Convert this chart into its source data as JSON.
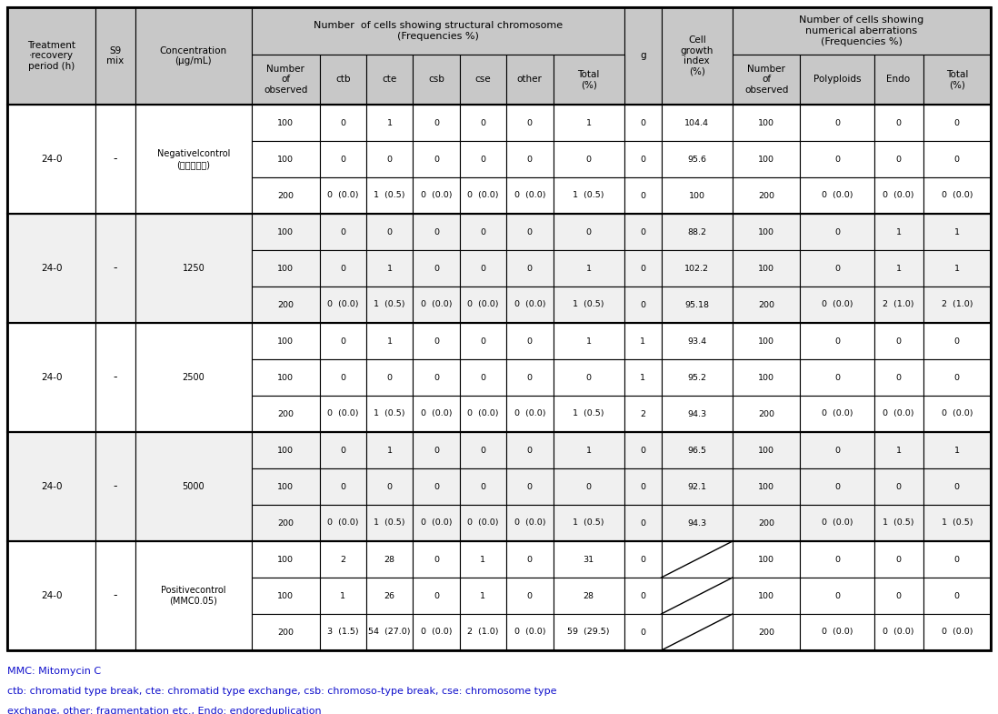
{
  "header_bg": "#c8c8c8",
  "white": "#ffffff",
  "light_gray": "#f0f0f0",
  "col_widths_rel": [
    7.2,
    3.2,
    9.5,
    5.5,
    3.8,
    3.8,
    3.8,
    3.8,
    3.8,
    5.8,
    3.0,
    5.8,
    5.5,
    6.0,
    4.0,
    5.5
  ],
  "groups": [
    {
      "treatment": "24-0",
      "s9": "-",
      "concentration": "Negativelcontrol\n(말균증류수)",
      "rows": [
        [
          "100",
          "0",
          "1",
          "0",
          "0",
          "0",
          "1",
          "0",
          "104.4",
          "100",
          "0",
          "0",
          "0"
        ],
        [
          "100",
          "0",
          "0",
          "0",
          "0",
          "0",
          "0",
          "0",
          "95.6",
          "100",
          "0",
          "0",
          "0"
        ],
        [
          "200",
          "0  (0.0)",
          "1  (0.5)",
          "0  (0.0)",
          "0  (0.0)",
          "0  (0.0)",
          "1  (0.5)",
          "0",
          "100",
          "200",
          "0  (0.0)",
          "0  (0.0)",
          "0  (0.0)"
        ]
      ]
    },
    {
      "treatment": "24-0",
      "s9": "-",
      "concentration": "1250",
      "rows": [
        [
          "100",
          "0",
          "0",
          "0",
          "0",
          "0",
          "0",
          "0",
          "88.2",
          "100",
          "0",
          "1",
          "1"
        ],
        [
          "100",
          "0",
          "1",
          "0",
          "0",
          "0",
          "1",
          "0",
          "102.2",
          "100",
          "0",
          "1",
          "1"
        ],
        [
          "200",
          "0  (0.0)",
          "1  (0.5)",
          "0  (0.0)",
          "0  (0.0)",
          "0  (0.0)",
          "1  (0.5)",
          "0",
          "95.18",
          "200",
          "0  (0.0)",
          "2  (1.0)",
          "2  (1.0)"
        ]
      ]
    },
    {
      "treatment": "24-0",
      "s9": "-",
      "concentration": "2500",
      "rows": [
        [
          "100",
          "0",
          "1",
          "0",
          "0",
          "0",
          "1",
          "1",
          "93.4",
          "100",
          "0",
          "0",
          "0"
        ],
        [
          "100",
          "0",
          "0",
          "0",
          "0",
          "0",
          "0",
          "1",
          "95.2",
          "100",
          "0",
          "0",
          "0"
        ],
        [
          "200",
          "0  (0.0)",
          "1  (0.5)",
          "0  (0.0)",
          "0  (0.0)",
          "0  (0.0)",
          "1  (0.5)",
          "2",
          "94.3",
          "200",
          "0  (0.0)",
          "0  (0.0)",
          "0  (0.0)"
        ]
      ]
    },
    {
      "treatment": "24-0",
      "s9": "-",
      "concentration": "5000",
      "rows": [
        [
          "100",
          "0",
          "1",
          "0",
          "0",
          "0",
          "1",
          "0",
          "96.5",
          "100",
          "0",
          "1",
          "1"
        ],
        [
          "100",
          "0",
          "0",
          "0",
          "0",
          "0",
          "0",
          "0",
          "92.1",
          "100",
          "0",
          "0",
          "0"
        ],
        [
          "200",
          "0  (0.0)",
          "1  (0.5)",
          "0  (0.0)",
          "0  (0.0)",
          "0  (0.0)",
          "1  (0.5)",
          "0",
          "94.3",
          "200",
          "0  (0.0)",
          "1  (0.5)",
          "1  (0.5)"
        ]
      ]
    },
    {
      "treatment": "24-0",
      "s9": "-",
      "concentration": "Positivecontrol\n(MMC0.05)",
      "rows": [
        [
          "100",
          "2",
          "28",
          "0",
          "1",
          "0",
          "31",
          "0",
          "",
          "100",
          "0",
          "0",
          "0"
        ],
        [
          "100",
          "1",
          "26",
          "0",
          "1",
          "0",
          "28",
          "0",
          "",
          "100",
          "0",
          "0",
          "0"
        ],
        [
          "200",
          "3  (1.5)",
          "54  (27.0)",
          "0  (0.0)",
          "2  (1.0)",
          "0  (0.0)",
          "59  (29.5)",
          "0",
          "",
          "200",
          "0  (0.0)",
          "0  (0.0)",
          "0  (0.0)"
        ]
      ]
    }
  ],
  "footnote1": "MMC: Mitomycin C",
  "footnote2": "ctb: chromatid type break, cte: chromatid type exchange, csb: chromoso-type break, cse: chromosome type\nexchange, other: fragmentation etc., Endo: endoreduplication",
  "footnote_color": "#1010cc"
}
